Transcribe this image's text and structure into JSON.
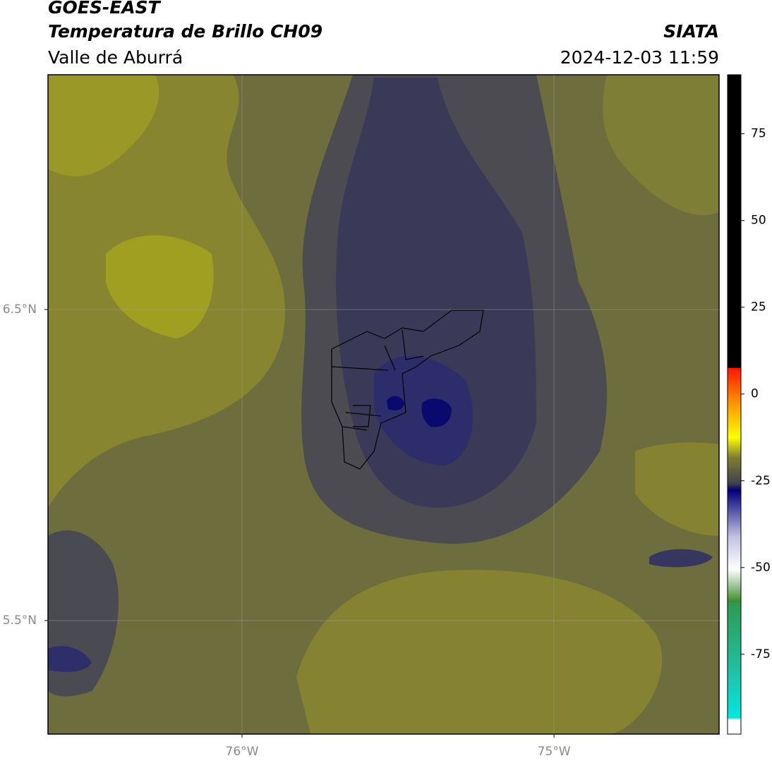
{
  "header": {
    "title": "GOES-EAST",
    "subtitle": "Temperatura de Brillo CH09",
    "region": "Valle de Aburrá",
    "source": "SIATA",
    "datetime": "2024-12-03 11:59"
  },
  "map": {
    "xlim": [
      -76.622,
      -74.471
    ],
    "ylim": [
      5.135,
      7.255
    ],
    "xticks": [
      {
        "value": -76,
        "label": "76°W"
      },
      {
        "value": -75,
        "label": "75°W"
      }
    ],
    "yticks": [
      {
        "value": 6.5,
        "label": "6.5°N"
      },
      {
        "value": 5.5,
        "label": "5.5°N"
      }
    ],
    "grid": true
  },
  "colorbar": {
    "lim": [
      -98,
      92
    ],
    "ticks": [
      75,
      50,
      25,
      0,
      -25,
      -50,
      -75
    ]
  }
}
